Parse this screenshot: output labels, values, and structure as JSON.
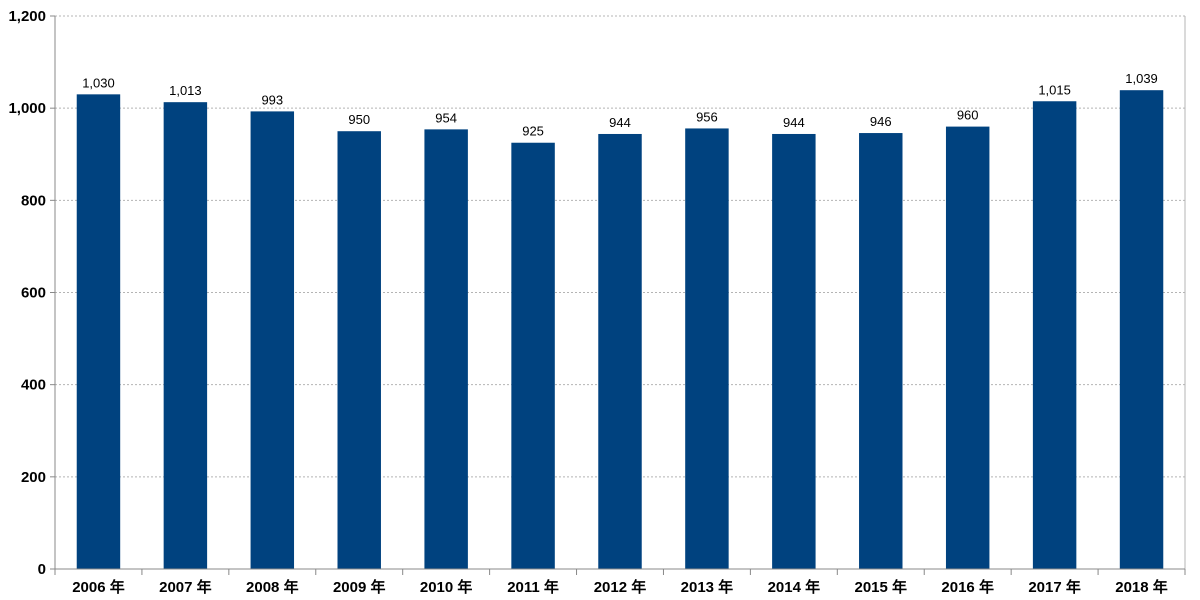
{
  "chart_data": {
    "type": "bar",
    "title": "",
    "xlabel": "",
    "ylabel": "",
    "categories": [
      "2006 年",
      "2007 年",
      "2008 年",
      "2009 年",
      "2010 年",
      "2011 年",
      "2012 年",
      "2013 年",
      "2014 年",
      "2015 年",
      "2016 年",
      "2017 年",
      "2018 年"
    ],
    "values": [
      1030,
      1013,
      993,
      950,
      954,
      925,
      944,
      956,
      944,
      946,
      960,
      1015,
      1039
    ],
    "value_labels": [
      "1,030",
      "1,013",
      "993",
      "950",
      "954",
      "925",
      "944",
      "956",
      "944",
      "946",
      "960",
      "1,015",
      "1,039"
    ],
    "ylim": [
      0,
      1200
    ],
    "yticks": [
      0,
      200,
      400,
      600,
      800,
      1000,
      1200
    ],
    "ytick_labels": [
      "0",
      "200",
      "400",
      "600",
      "800",
      "1,000",
      "1,200"
    ],
    "grid": true,
    "legend": "none",
    "bar_color": "#00427f",
    "grid_color": "#b4b4b4",
    "axis_color": "#888888"
  }
}
